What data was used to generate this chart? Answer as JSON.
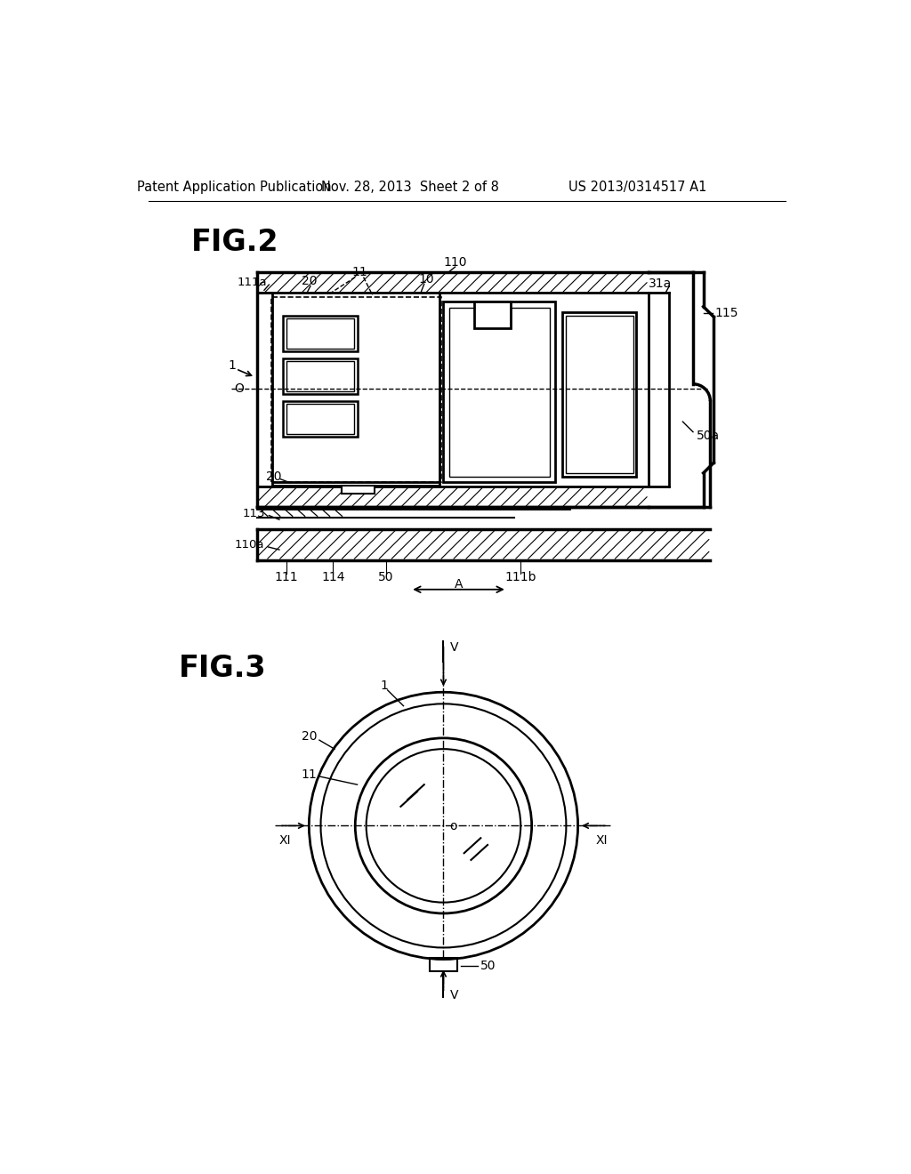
{
  "bg_color": "#ffffff",
  "header_left": "Patent Application Publication",
  "header_mid": "Nov. 28, 2013  Sheet 2 of 8",
  "header_right": "US 2013/0314517 A1"
}
